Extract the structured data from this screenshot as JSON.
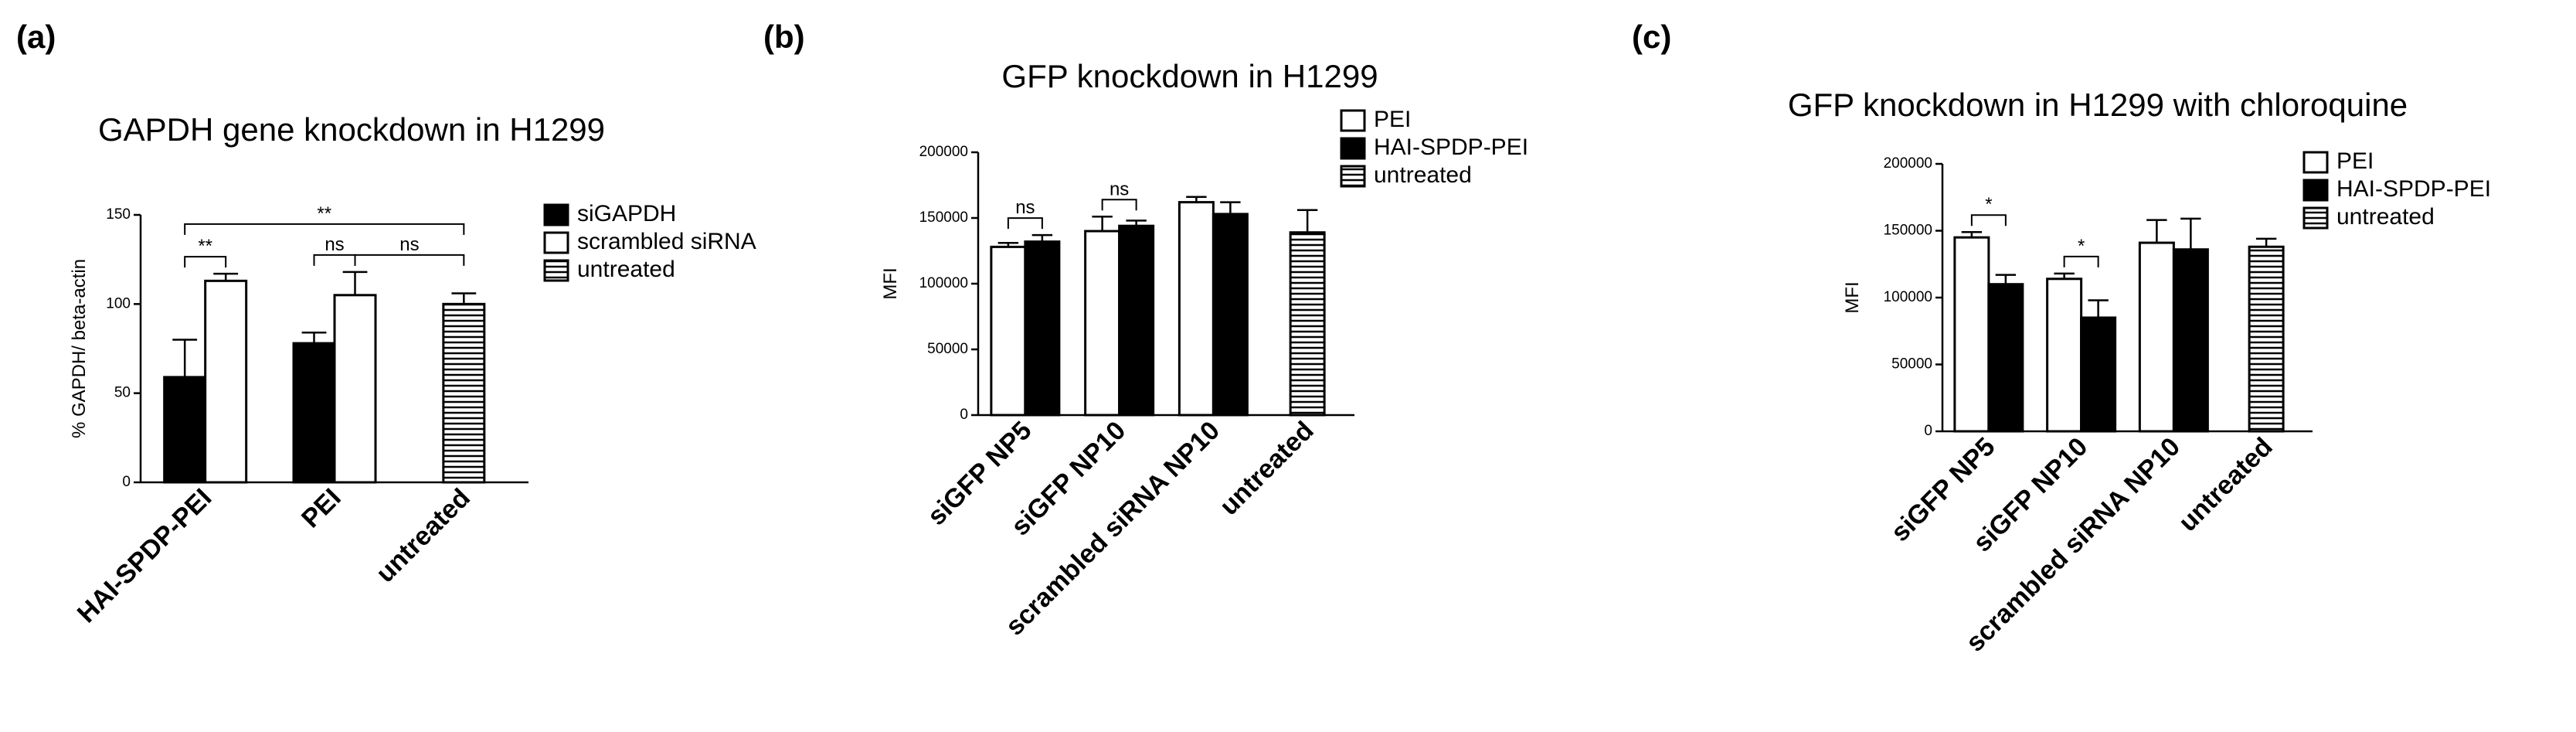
{
  "charts": [
    {
      "type": "bar",
      "panel_label": "(a)",
      "title": "GAPDH gene knockdown in H1299",
      "y_label": "% GAPDH/ beta-actin",
      "categories": [
        "HAI-SPDP-PEI",
        "PEI",
        "untreated"
      ],
      "series": [
        {
          "name": "siGAPDH",
          "color": "#000000",
          "values": [
            59,
            78,
            null
          ],
          "errors": [
            21,
            6,
            null
          ]
        },
        {
          "name": "scrambled siRNA",
          "color": "#ffffff",
          "values": [
            113,
            105,
            null
          ],
          "errors": [
            4,
            13,
            null
          ]
        },
        {
          "name": "untreated",
          "color": "#ffffff",
          "pattern": "horizontal-stripes",
          "values": [
            null,
            null,
            100
          ],
          "errors": [
            null,
            null,
            6
          ]
        }
      ],
      "ylim": [
        0,
        150
      ],
      "yticks": [
        0,
        50,
        100,
        150
      ],
      "annotations": [
        {
          "text": "**",
          "from": [
            0,
            0
          ],
          "to": [
            1,
            0
          ]
        },
        {
          "text": "ns",
          "from": [
            0,
            1
          ],
          "to": [
            1,
            1
          ]
        },
        {
          "text": "ns",
          "from": [
            1,
            1
          ],
          "to": [
            2,
            2
          ]
        },
        {
          "text": "**",
          "from": [
            0,
            0
          ],
          "to": [
            2,
            2
          ]
        }
      ]
    },
    {
      "type": "bar",
      "panel_label": "(b)",
      "title": "GFP knockdown in H1299",
      "y_label": "MFI",
      "categories": [
        "siGFP NP5",
        "siGFP NP10",
        "scrambled siRNA NP10",
        "untreated"
      ],
      "series": [
        {
          "name": "PEI",
          "color": "#ffffff",
          "values": [
            128000,
            140000,
            162000,
            null
          ],
          "errors": [
            3000,
            11000,
            4000,
            null
          ]
        },
        {
          "name": "HAI-SPDP-PEI",
          "color": "#000000",
          "values": [
            132000,
            144000,
            153000,
            null
          ],
          "errors": [
            5000,
            4000,
            9000,
            null
          ]
        },
        {
          "name": "untreated",
          "color": "#ffffff",
          "pattern": "horizontal-stripes",
          "values": [
            null,
            null,
            null,
            139000
          ],
          "errors": [
            null,
            null,
            null,
            17000
          ]
        }
      ],
      "ylim": [
        0,
        200000
      ],
      "yticks": [
        0,
        50000,
        100000,
        150000,
        200000
      ],
      "annotations": [
        {
          "text": "ns",
          "from": [
            0,
            0
          ],
          "to": [
            1,
            0
          ]
        },
        {
          "text": "ns",
          "from": [
            0,
            1
          ],
          "to": [
            1,
            1
          ]
        }
      ]
    },
    {
      "type": "bar",
      "panel_label": "(c)",
      "title": "GFP knockdown in H1299 with chloroquine",
      "y_label": "MFI",
      "categories": [
        "siGFP NP5",
        "siGFP NP10",
        "scrambled siRNA NP10",
        "untreated"
      ],
      "series": [
        {
          "name": "PEI",
          "color": "#ffffff",
          "values": [
            145000,
            114000,
            141000,
            null
          ],
          "errors": [
            4000,
            4000,
            17000,
            null
          ]
        },
        {
          "name": "HAI-SPDP-PEI",
          "color": "#000000",
          "values": [
            110000,
            85000,
            136000,
            null
          ],
          "errors": [
            7000,
            13000,
            23000,
            null
          ]
        },
        {
          "name": "untreated",
          "color": "#ffffff",
          "pattern": "horizontal-stripes",
          "values": [
            null,
            null,
            null,
            138000
          ],
          "errors": [
            null,
            null,
            null,
            6000
          ]
        }
      ],
      "ylim": [
        0,
        200000
      ],
      "yticks": [
        0,
        50000,
        100000,
        150000,
        200000
      ],
      "annotations": [
        {
          "text": "*",
          "from": [
            0,
            0
          ],
          "to": [
            1,
            0
          ]
        },
        {
          "text": "*",
          "from": [
            0,
            1
          ],
          "to": [
            1,
            1
          ]
        }
      ]
    }
  ]
}
